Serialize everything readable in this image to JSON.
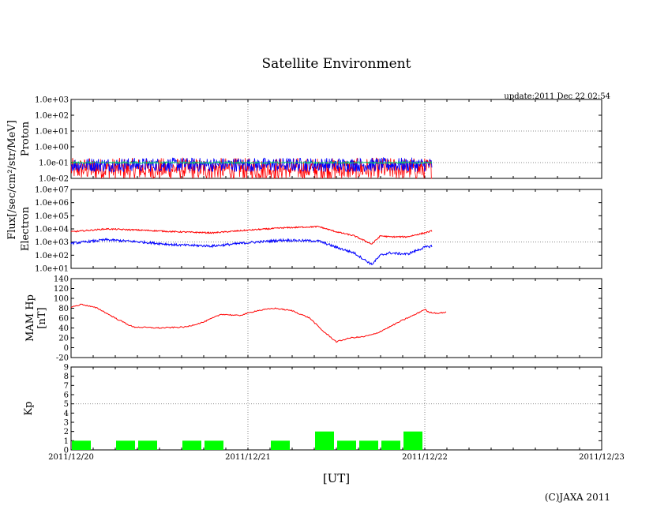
{
  "page": {
    "title": "Satellite Environment",
    "update": "update:2011 Dec 22 02:54",
    "x_unit": "[UT]",
    "copyright": "(C)JAXA 2011",
    "flux_label": "Flux[/sec/cm²/str/MeV]"
  },
  "chart_data": [
    {
      "type": "line",
      "name": "proton",
      "ylabel": "Proton",
      "yscale": "log",
      "ylim": [
        0.01,
        1000
      ],
      "yticks": [
        "1.0e-02",
        "1.0e-01",
        "1.0e+00",
        "1.0e+01",
        "1.0e+02",
        "1.0e+03"
      ],
      "grid_at": [
        0.1,
        10
      ],
      "series": [
        {
          "name": "red",
          "color": "#ff0000",
          "base": 0.07,
          "values_approx": "noisy between 0.02 and 0.1"
        },
        {
          "name": "blue",
          "color": "#0000ff",
          "base": 0.1,
          "values_approx": "noisy around 0.1"
        },
        {
          "name": "green",
          "color": "#00cc66",
          "base": 0.1,
          "values_approx": "around 0.1"
        }
      ],
      "x_end": 2.04
    },
    {
      "type": "line",
      "name": "electron",
      "ylabel": "Electron",
      "yscale": "log",
      "ylim": [
        10,
        10000000
      ],
      "yticks": [
        "1.0e+01",
        "1.0e+02",
        "1.0e+03",
        "1.0e+04",
        "1.0e+05",
        "1.0e+06",
        "1.0e+07"
      ],
      "grid_at": [
        1000
      ],
      "series": [
        {
          "name": "red",
          "color": "#ff0000",
          "x": [
            0,
            0.2,
            0.4,
            0.6,
            0.8,
            1.0,
            1.2,
            1.4,
            1.5,
            1.6,
            1.7,
            1.75,
            1.8,
            1.9,
            2.0,
            2.04
          ],
          "values": [
            6000,
            10000,
            8000,
            6000,
            5000,
            8000,
            12000,
            15000,
            6000,
            3000,
            700,
            3000,
            2500,
            2500,
            5000,
            7000
          ]
        },
        {
          "name": "blue",
          "color": "#0000ff",
          "x": [
            0,
            0.2,
            0.4,
            0.6,
            0.8,
            1.0,
            1.2,
            1.4,
            1.5,
            1.6,
            1.7,
            1.75,
            1.8,
            1.9,
            2.0,
            2.04
          ],
          "values": [
            800,
            1500,
            1000,
            600,
            500,
            900,
            1400,
            1200,
            400,
            150,
            20,
            100,
            150,
            120,
            400,
            500
          ]
        }
      ],
      "x_end": 2.04
    },
    {
      "type": "line",
      "name": "mam_hp",
      "ylabel": "MAM Hp [nT]",
      "ylabel_lines": [
        "MAM Hp",
        "[nT]"
      ],
      "ylim": [
        -20,
        140
      ],
      "yticks": [
        "-20",
        "0",
        "20",
        "40",
        "60",
        "80",
        "100",
        "120",
        "140"
      ],
      "series": [
        {
          "name": "Hp",
          "color": "#ff0000",
          "x": [
            0,
            0.06,
            0.15,
            0.25,
            0.35,
            0.5,
            0.65,
            0.75,
            0.85,
            0.95,
            1.05,
            1.15,
            1.25,
            1.35,
            1.42,
            1.5,
            1.58,
            1.65,
            1.72,
            1.8,
            1.87,
            1.95,
            2.0,
            2.02,
            2.07,
            2.12
          ],
          "values": [
            82,
            88,
            80,
            60,
            42,
            40,
            42,
            52,
            68,
            65,
            75,
            80,
            75,
            60,
            35,
            12,
            20,
            22,
            28,
            42,
            55,
            68,
            78,
            72,
            70,
            72
          ]
        }
      ],
      "x_end": 2.12
    },
    {
      "type": "bar",
      "name": "kp",
      "ylabel": "Kp",
      "ylim": [
        0,
        9
      ],
      "yticks": [
        "0",
        "1",
        "2",
        "3",
        "4",
        "5",
        "6",
        "7",
        "8",
        "9"
      ],
      "grid_at": [
        5
      ],
      "bar_width_days": 0.125,
      "bars": [
        {
          "start": 0.0,
          "value": 1
        },
        {
          "start": 0.25,
          "value": 1
        },
        {
          "start": 0.375,
          "value": 1
        },
        {
          "start": 0.625,
          "value": 1
        },
        {
          "start": 0.75,
          "value": 1
        },
        {
          "start": 1.125,
          "value": 1
        },
        {
          "start": 1.375,
          "value": 2
        },
        {
          "start": 1.5,
          "value": 1
        },
        {
          "start": 1.625,
          "value": 1
        },
        {
          "start": 1.75,
          "value": 1
        },
        {
          "start": 1.875,
          "value": 2
        }
      ],
      "color": "#00ff00"
    }
  ],
  "x_axis": {
    "range_days": [
      0,
      3
    ],
    "ticks": [
      "2011/12/20",
      "2011/12/21",
      "2011/12/22",
      "2011/12/23"
    ]
  }
}
